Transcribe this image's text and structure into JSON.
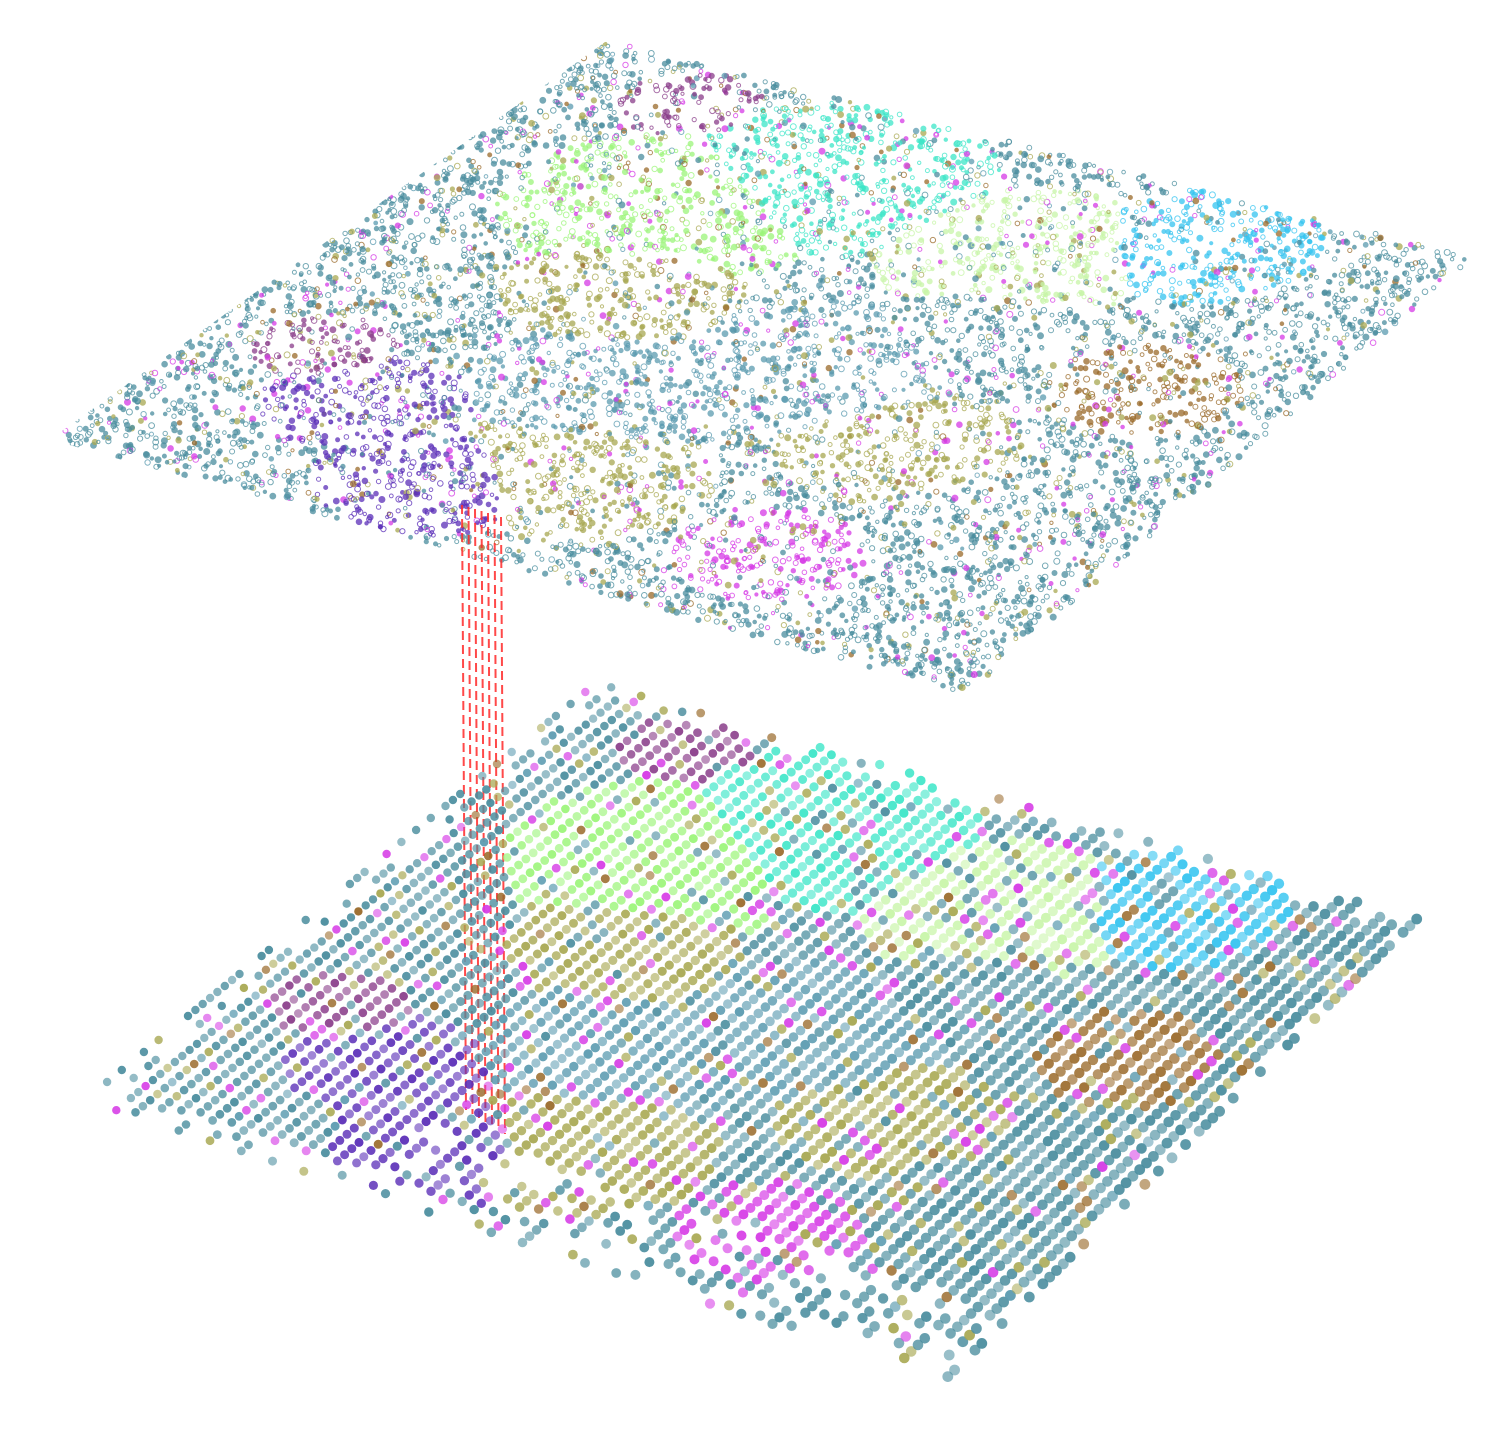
{
  "figure": {
    "description_free": true,
    "palette": {
      "teal": "#4a8d9e",
      "steel_blue": "#5b9bb0",
      "olive": "#a8a852",
      "brown": "#9a6a2a",
      "magenta": "#d63ae6",
      "violet": "#5b2fb8",
      "plum": "#8a3d8a",
      "sky": "#35c4f0",
      "aqua": "#3de6c8",
      "lime": "#9cf57a",
      "pale_green": "#c8f5a8"
    },
    "connector_color": "#ff2a2a",
    "connector_count": 7
  }
}
